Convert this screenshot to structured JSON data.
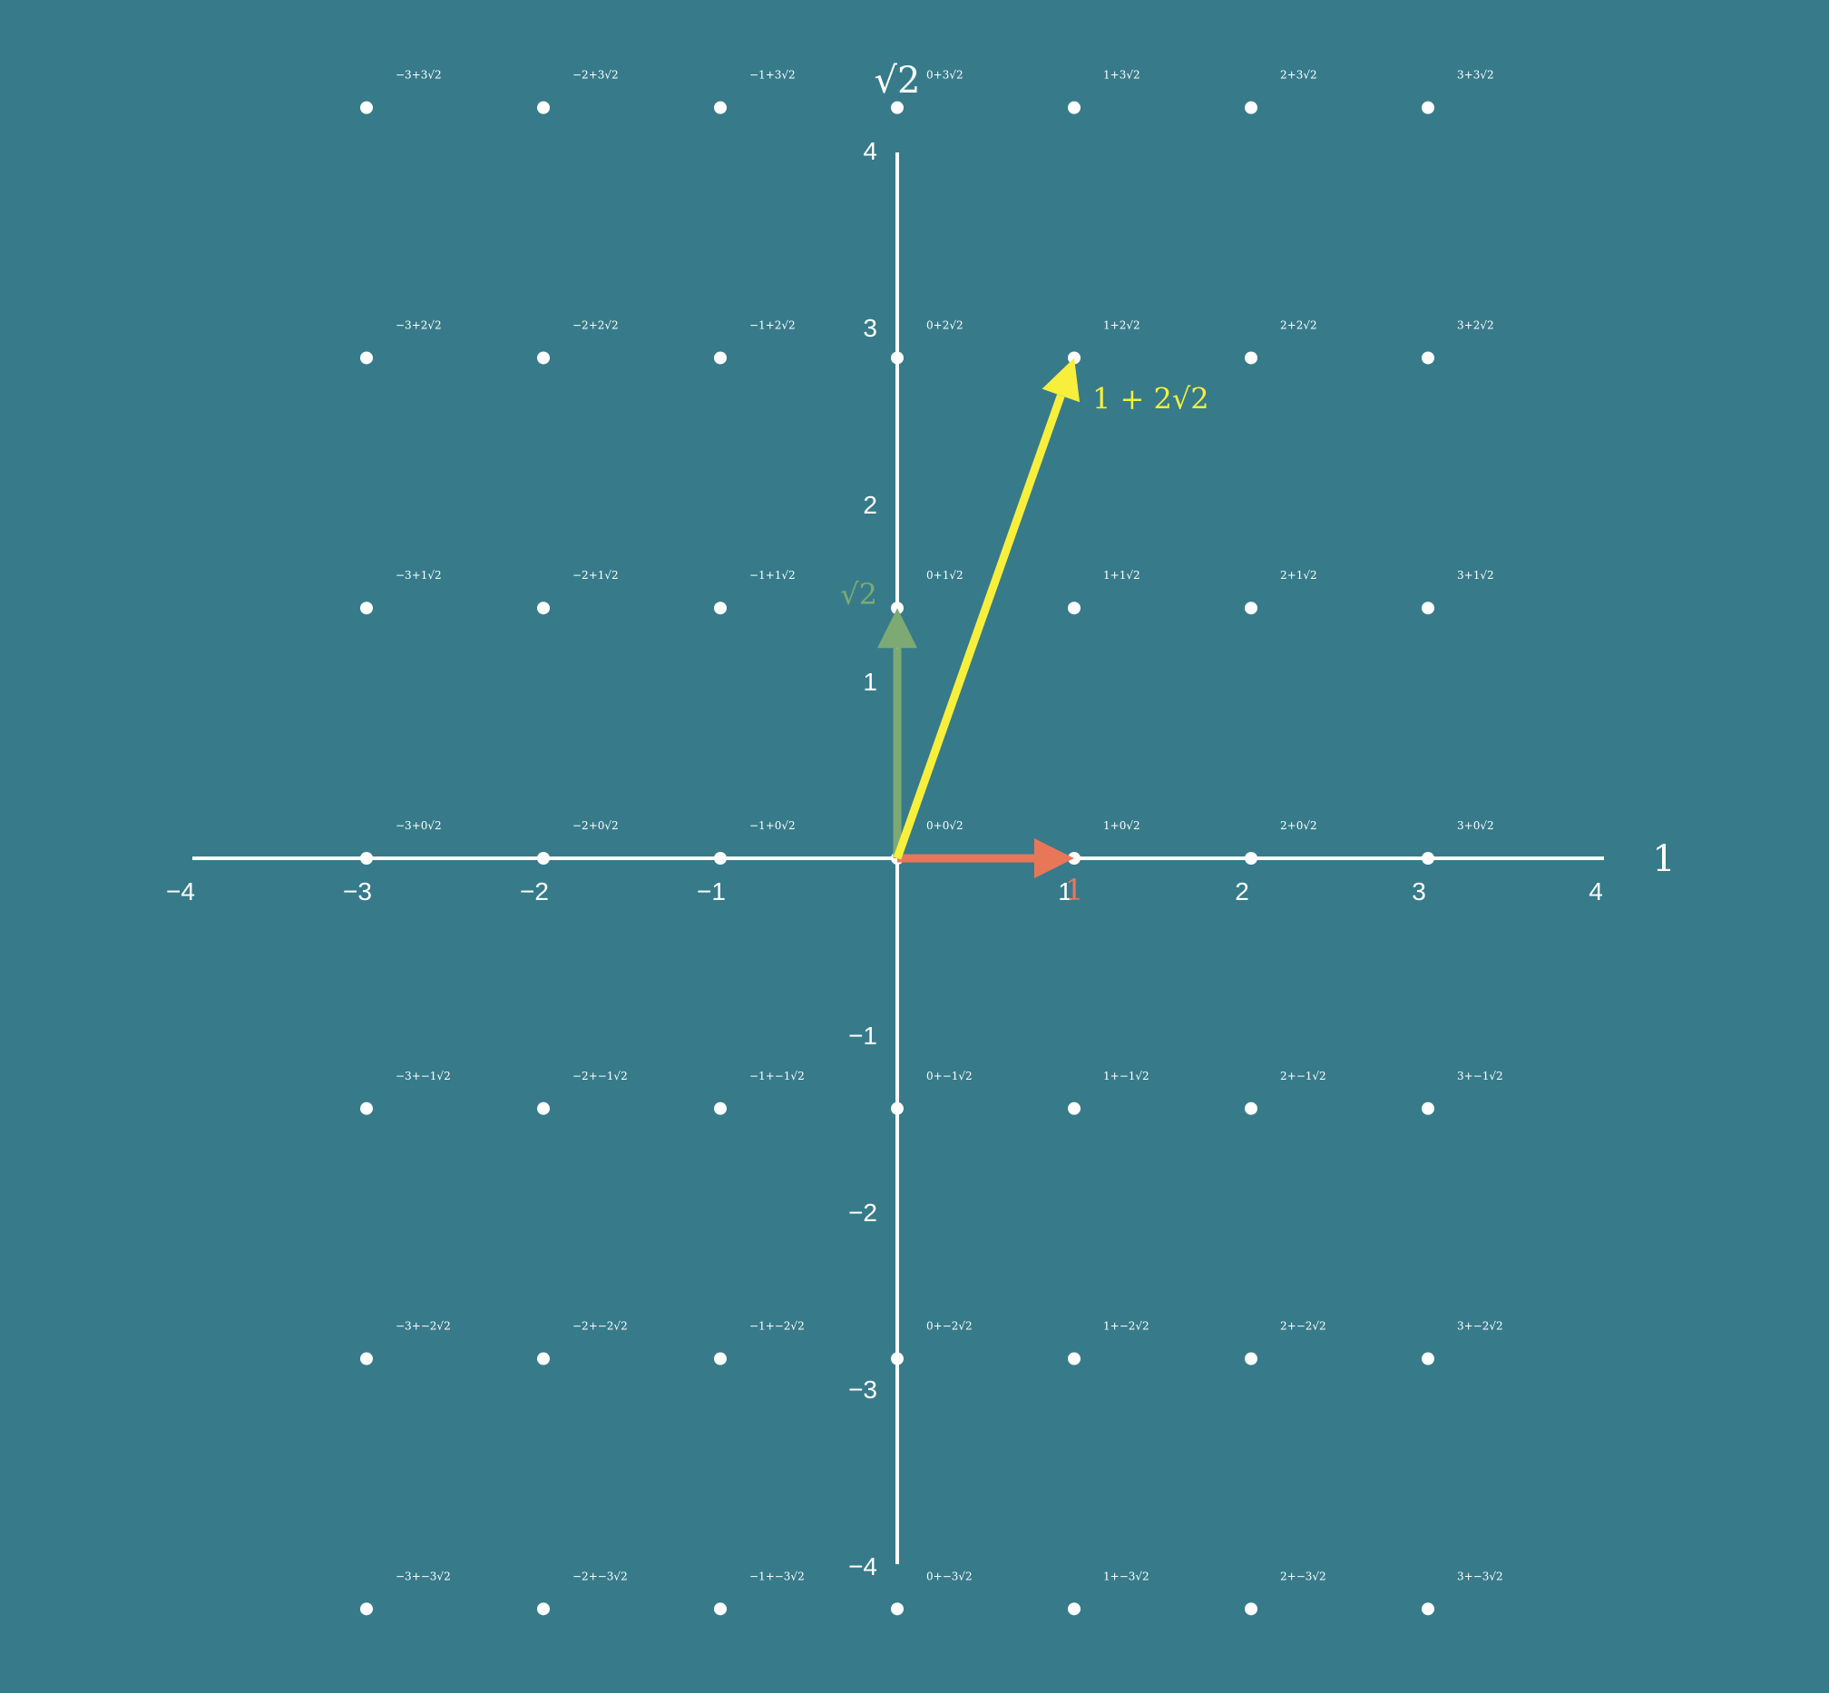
{
  "axes": {
    "horizontal_title": "1",
    "vertical_title": "√2",
    "x_ticks": [
      "−4",
      "−3",
      "−2",
      "−1",
      "1",
      "2",
      "3",
      "4"
    ],
    "y_ticks": [
      "4",
      "3",
      "2",
      "1",
      "−1",
      "−2",
      "−3",
      "−4"
    ],
    "range": [
      -4,
      4
    ],
    "line_color": "#ffffff"
  },
  "lattice": {
    "a_values": [
      -3,
      -2,
      -1,
      0,
      1,
      2,
      3
    ],
    "b_values": [
      3,
      2,
      1,
      0,
      -1,
      -2,
      -3
    ],
    "labels": [
      [
        "−3+3√2",
        "−2+3√2",
        "−1+3√2",
        "0+3√2",
        "1+3√2",
        "2+3√2",
        "3+3√2"
      ],
      [
        "−3+2√2",
        "−2+2√2",
        "−1+2√2",
        "0+2√2",
        "1+2√2",
        "2+2√2",
        "3+2√2"
      ],
      [
        "−3+1√2",
        "−2+1√2",
        "−1+1√2",
        "0+1√2",
        "1+1√2",
        "2+1√2",
        "3+1√2"
      ],
      [
        "−3+0√2",
        "−2+0√2",
        "−1+0√2",
        "0+0√2",
        "1+0√2",
        "2+0√2",
        "3+0√2"
      ],
      [
        "−3+−1√2",
        "−2+−1√2",
        "−1+−1√2",
        "0+−1√2",
        "1+−1√2",
        "2+−1√2",
        "3+−1√2"
      ],
      [
        "−3+−2√2",
        "−2+−2√2",
        "−1+−2√2",
        "0+−2√2",
        "1+−2√2",
        "2+−2√2",
        "3+−2√2"
      ],
      [
        "−3+−3√2",
        "−2+−3√2",
        "−1+−3√2",
        "0+−3√2",
        "1+−3√2",
        "2+−3√2",
        "3+−3√2"
      ]
    ],
    "dot_color": "#ffffff"
  },
  "vectors": [
    {
      "id": "one",
      "label": "1",
      "a": 1,
      "b": 0,
      "color": "#e8775a"
    },
    {
      "id": "sqrt2",
      "label": "√2",
      "a": 0,
      "b": 1,
      "color": "#7daa73"
    },
    {
      "id": "sum",
      "label": "1 + 2√2",
      "a": 1,
      "b": 2,
      "color": "#f7ef3b"
    }
  ],
  "background_color": "#377b8a"
}
